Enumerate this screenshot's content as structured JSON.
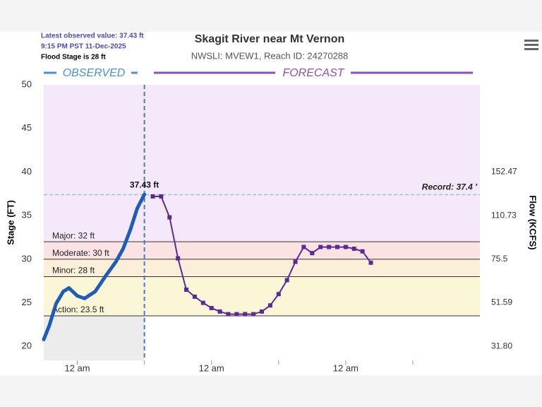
{
  "chart_data": {
    "type": "line",
    "title": "Skagit River near Mt Vernon",
    "subtitle": "NWSLI: MVEW1, Reach ID: 24270288",
    "info": [
      "Latest observed value: 37.43 ft",
      "9:15 PM PST 11-Dec-2025",
      "Flood Stage is 28 ft"
    ],
    "segment_labels": [
      "OBSERVED",
      "FORECAST"
    ],
    "y_label": "Stage (FT)",
    "y2_label": "Flow (KCFS)",
    "xlim": [
      -6,
      72
    ],
    "xticks": [
      {
        "value": 0,
        "label": "12 am"
      },
      {
        "value": 24,
        "label": "12 am"
      },
      {
        "value": 48,
        "label": "12 am"
      }
    ],
    "ylim": [
      18.4,
      50
    ],
    "yticks": [
      20,
      25,
      30,
      35,
      40,
      45,
      50
    ],
    "y2ticks_stage": [
      40,
      35,
      30,
      25,
      20
    ],
    "y2ticks": [
      152.47,
      110.73,
      75.5,
      51.59,
      {
        "value": 31.8,
        "label": "31.80"
      }
    ],
    "thresholds": [
      {
        "label": "Major: 32 ft",
        "value": 32,
        "color": "#f6e8fb"
      },
      {
        "label": "Moderate: 30 ft",
        "value": 30,
        "color": "#fbe3e3"
      },
      {
        "label": "Minor: 28 ft",
        "value": 28,
        "color": "#fcefd9"
      },
      {
        "label": "Action: 23.5 ft",
        "value": 23.5,
        "color": "#fbf7d6"
      }
    ],
    "record": {
      "label": "Record: 37.4 '",
      "value": 37.4,
      "color": "#8cc4ea"
    },
    "latest": {
      "label": "37.43 ft",
      "value": 37.43,
      "x": 12
    },
    "series": [
      {
        "name": "Observed",
        "color": "#1f5cb8",
        "x": [
          -6,
          -5,
          -3.8,
          -2.5,
          -1.5,
          0,
          1.3,
          3.2,
          5.1,
          6.9,
          8.2,
          9.5,
          10.7,
          12
        ],
        "values": [
          20.8,
          22.4,
          24.9,
          26.3,
          26.7,
          25.8,
          25.5,
          26.3,
          28.1,
          29.7,
          31.2,
          33.4,
          35.8,
          37.43
        ]
      },
      {
        "name": "Forecast",
        "color": "#5a2a96",
        "x": [
          13.5,
          15,
          16.5,
          18,
          19.5,
          21,
          22.5,
          24,
          25.5,
          27,
          28.5,
          30,
          31.5,
          33,
          34.5,
          36,
          37.5,
          39,
          40.5,
          42,
          43.5,
          45,
          46.5,
          48,
          49.5,
          51,
          52.5
        ],
        "values": [
          37.2,
          37.2,
          34.8,
          30.1,
          26.5,
          25.7,
          25.0,
          24.4,
          24.0,
          23.7,
          23.7,
          23.7,
          23.7,
          24.0,
          24.7,
          26.0,
          27.6,
          29.7,
          31.4,
          30.7,
          31.4,
          31.4,
          31.4,
          31.4,
          31.2,
          30.9,
          29.6
        ]
      }
    ]
  }
}
